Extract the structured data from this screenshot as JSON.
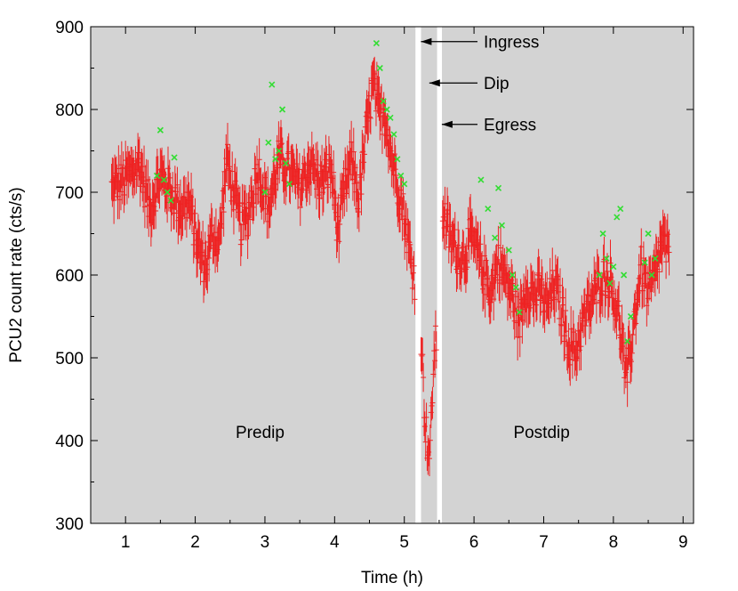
{
  "chart_data": {
    "type": "scatter",
    "xlabel": "Time (h)",
    "ylabel": "PCU2 count rate (cts/s)",
    "xlim": [
      0.5,
      9.15
    ],
    "ylim": [
      300,
      900
    ],
    "x_ticks": [
      "1",
      "2",
      "3",
      "4",
      "5",
      "6",
      "7",
      "8",
      "9"
    ],
    "y_ticks": [
      "300",
      "400",
      "500",
      "600",
      "700",
      "800",
      "900"
    ],
    "grid": false,
    "background_color": "#d3d3d3",
    "series_colors": {
      "count_rate": "#ee2222",
      "flagged": "#33dd33"
    },
    "annotations": [
      {
        "text": "Ingress",
        "x": 5.2,
        "y": 882
      },
      {
        "text": "Dip",
        "x": 5.32,
        "y": 832
      },
      {
        "text": "Egress",
        "x": 5.5,
        "y": 782
      },
      {
        "text": "Predip",
        "x": 2.93,
        "y": 403
      },
      {
        "text": "Postdip",
        "x": 6.97,
        "y": 403
      }
    ],
    "gaps": [
      {
        "x0": 5.16,
        "x1": 5.24
      },
      {
        "x0": 5.47,
        "x1": 5.54
      }
    ],
    "series": [
      {
        "key": "count_rate",
        "marker": "errorbar",
        "segments": [
          {
            "x": [
              0.8,
              1.0,
              1.2,
              1.35,
              1.5,
              1.65,
              1.8,
              1.9,
              2.05,
              2.15,
              2.25,
              2.35,
              2.45,
              2.55,
              2.65,
              2.75,
              2.9,
              3.05,
              3.2,
              3.35,
              3.5,
              3.65,
              3.8,
              3.95,
              4.05,
              4.15,
              4.25,
              4.35,
              4.45,
              4.55,
              4.65,
              4.72,
              4.8,
              4.88,
              4.96,
              5.03,
              5.1,
              5.15
            ],
            "y": [
              705,
              715,
              735,
              680,
              720,
              700,
              680,
              690,
              630,
              610,
              650,
              640,
              740,
              700,
              660,
              670,
              730,
              680,
              740,
              725,
              705,
              735,
              710,
              730,
              650,
              705,
              740,
              690,
              770,
              830,
              790,
              800,
              750,
              720,
              690,
              655,
              615,
              595
            ],
            "err": 24
          },
          {
            "x": [
              5.24,
              5.28,
              5.31,
              5.34,
              5.37,
              5.4,
              5.43,
              5.46
            ],
            "y": [
              525,
              455,
              412,
              392,
              378,
              455,
              505,
              520
            ],
            "err": 20
          },
          {
            "x": [
              5.55,
              5.65,
              5.75,
              5.85,
              5.95,
              6.05,
              6.15,
              6.25,
              6.35,
              6.45,
              6.55,
              6.65,
              6.75,
              6.85,
              6.95,
              7.05,
              7.15,
              7.25,
              7.35,
              7.45,
              7.55,
              7.65,
              7.75,
              7.85,
              7.95,
              8.05,
              8.12,
              8.18,
              8.25,
              8.32,
              8.4,
              8.5,
              8.6,
              8.7,
              8.8
            ],
            "y": [
              680,
              645,
              630,
              620,
              645,
              625,
              600,
              580,
              620,
              595,
              575,
              540,
              590,
              575,
              580,
              560,
              590,
              560,
              520,
              505,
              540,
              560,
              580,
              600,
              595,
              560,
              525,
              470,
              510,
              560,
              610,
              575,
              600,
              640,
              620
            ],
            "err": 24
          }
        ]
      },
      {
        "key": "flagged",
        "marker": "x",
        "x": [
          1.45,
          1.5,
          1.55,
          1.6,
          1.65,
          1.7,
          3.0,
          3.05,
          3.1,
          3.15,
          3.2,
          3.25,
          3.3,
          3.35,
          4.6,
          4.65,
          4.7,
          4.75,
          4.8,
          4.85,
          4.9,
          4.95,
          5.0,
          6.1,
          6.2,
          6.3,
          6.35,
          6.4,
          6.5,
          6.55,
          6.6,
          6.65,
          7.8,
          7.85,
          7.9,
          7.95,
          8.0,
          8.05,
          8.1,
          8.15,
          8.2,
          8.25,
          8.45,
          8.5,
          8.55,
          8.6
        ],
        "y": [
          720,
          775,
          715,
          700,
          690,
          742,
          700,
          760,
          830,
          740,
          750,
          800,
          735,
          710,
          880,
          850,
          810,
          800,
          790,
          770,
          740,
          720,
          710,
          715,
          680,
          645,
          705,
          660,
          630,
          600,
          585,
          555,
          600,
          650,
          620,
          590,
          610,
          670,
          680,
          600,
          520,
          550,
          615,
          650,
          600,
          620
        ]
      }
    ]
  }
}
